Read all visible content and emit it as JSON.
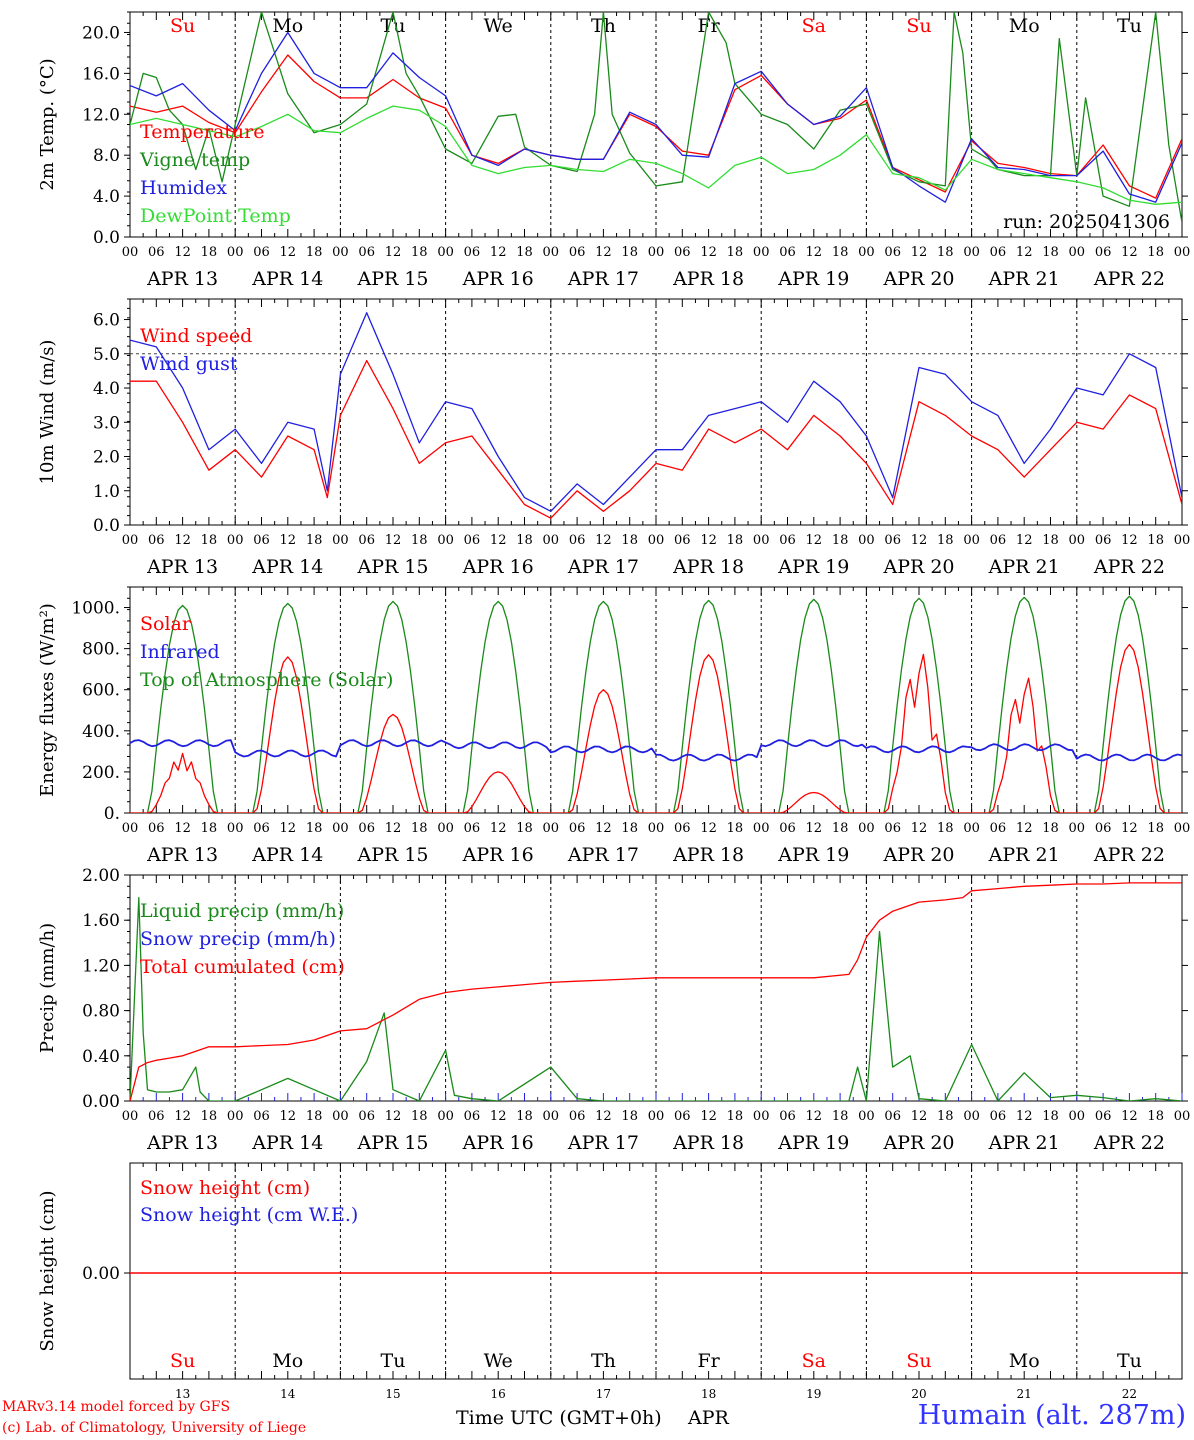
{
  "colors": {
    "red": "#ff0000",
    "green": "#1a8a1a",
    "blue": "#2020e0",
    "lightgreen": "#33dd33",
    "axis": "#000000"
  },
  "days": [
    "Su",
    "Mo",
    "Tu",
    "We",
    "Th",
    "Fr",
    "Sa",
    "Su",
    "Mo",
    "Tu"
  ],
  "day_colors": [
    "red",
    "black",
    "black",
    "black",
    "black",
    "black",
    "red",
    "red",
    "black",
    "black"
  ],
  "dates": [
    "APR 13",
    "APR 14",
    "APR 15",
    "APR 16",
    "APR 17",
    "APR 18",
    "APR 19",
    "APR 20",
    "APR 21",
    "APR 22"
  ],
  "day_numbers": [
    "13",
    "14",
    "15",
    "16",
    "17",
    "18",
    "19",
    "20",
    "21",
    "22"
  ],
  "hour_labels": [
    "00",
    "06",
    "12",
    "18"
  ],
  "final_hour_label": "00",
  "footer": {
    "model": "MARv3.14 model forced by GFS",
    "lab": "(c) Lab. of Climatology, University of Liege",
    "time_axis": "Time UTC (GMT+0h)",
    "month": "APR",
    "station": "Humain (alt. 287m)"
  },
  "chart_data": [
    {
      "type": "line",
      "ylabel": "2m Temp. (°C)",
      "ylim": [
        0,
        22
      ],
      "yticks": [
        "0.0",
        "4.0",
        "8.0",
        "12.0",
        "16.0",
        "20.0"
      ],
      "annotation": "run: 2025041306",
      "series": [
        {
          "name": "Temperature",
          "color": "red",
          "x": [
            0,
            6,
            12,
            18,
            24,
            30,
            36,
            42,
            48,
            54,
            60,
            66,
            72,
            78,
            84,
            90,
            96,
            102,
            108,
            114,
            120,
            126,
            132,
            138,
            144,
            150,
            156,
            162,
            168,
            174,
            180,
            186,
            192,
            198,
            204,
            210,
            216,
            222,
            228,
            234,
            240
          ],
          "y": [
            12.8,
            12.2,
            12.8,
            11.2,
            10.2,
            14.2,
            17.8,
            15.2,
            13.6,
            13.6,
            15.4,
            13.6,
            12.6,
            8.0,
            7.2,
            8.6,
            8.0,
            7.6,
            7.6,
            12.0,
            10.8,
            8.4,
            8.0,
            14.4,
            15.8,
            13.0,
            11.0,
            11.6,
            13.4,
            6.8,
            5.6,
            4.4,
            9.4,
            7.2,
            6.8,
            6.2,
            6.0,
            9.0,
            5.0,
            3.8,
            9.6
          ]
        },
        {
          "name": "Vigne temp",
          "color": "green",
          "x": [
            0,
            3,
            6,
            9,
            12,
            15,
            18,
            21,
            24,
            30,
            36,
            42,
            48,
            54,
            60,
            63,
            66,
            72,
            78,
            84,
            88,
            90,
            96,
            102,
            106,
            108,
            110,
            114,
            120,
            126,
            132,
            136,
            138,
            144,
            150,
            156,
            162,
            168,
            174,
            180,
            186,
            188,
            190,
            192,
            196,
            198,
            204,
            210,
            212,
            216,
            218,
            222,
            228,
            234,
            237,
            240
          ],
          "y": [
            11.0,
            16.0,
            15.6,
            12.4,
            11.0,
            6.6,
            10.6,
            5.4,
            11.0,
            22,
            14.0,
            10.2,
            11.0,
            13.0,
            22,
            16.0,
            13.8,
            8.6,
            7.2,
            11.8,
            12.0,
            8.8,
            7.0,
            6.4,
            12.0,
            22,
            12.0,
            8.2,
            5.0,
            5.4,
            22,
            19.0,
            15.0,
            12.0,
            11.0,
            8.6,
            12.4,
            13.0,
            6.6,
            5.4,
            5.0,
            22,
            18.0,
            8.6,
            7.6,
            6.6,
            6.0,
            6.0,
            19.4,
            6.0,
            13.6,
            4.0,
            3.0,
            22,
            9.0,
            1.4
          ]
        },
        {
          "name": "Humidex",
          "color": "blue",
          "x": [
            0,
            6,
            12,
            18,
            24,
            30,
            36,
            42,
            48,
            54,
            60,
            66,
            72,
            78,
            84,
            90,
            96,
            102,
            108,
            114,
            120,
            126,
            132,
            138,
            144,
            150,
            156,
            162,
            168,
            174,
            180,
            186,
            192,
            198,
            204,
            210,
            216,
            222,
            228,
            234,
            240
          ],
          "y": [
            14.8,
            13.8,
            15.0,
            12.4,
            10.4,
            16.0,
            20.0,
            16.0,
            14.6,
            14.6,
            18.0,
            15.6,
            13.8,
            8.0,
            7.0,
            8.6,
            8.0,
            7.6,
            7.6,
            12.2,
            11.0,
            8.0,
            7.8,
            15.0,
            16.2,
            13.0,
            11.0,
            11.8,
            14.6,
            6.8,
            5.0,
            3.4,
            9.6,
            6.8,
            6.6,
            6.0,
            6.0,
            8.4,
            4.2,
            3.4,
            9.2
          ]
        },
        {
          "name": "DewPoint Temp",
          "color": "lightgreen",
          "x": [
            0,
            6,
            12,
            18,
            24,
            30,
            36,
            42,
            48,
            54,
            60,
            66,
            72,
            78,
            84,
            90,
            96,
            102,
            108,
            114,
            120,
            126,
            132,
            138,
            144,
            150,
            156,
            162,
            168,
            174,
            180,
            186,
            192,
            198,
            204,
            210,
            216,
            222,
            228,
            234,
            240
          ],
          "y": [
            11.0,
            11.6,
            11.0,
            10.4,
            9.8,
            10.8,
            12.0,
            10.4,
            10.2,
            11.6,
            12.8,
            12.4,
            10.8,
            7.0,
            6.2,
            6.8,
            7.0,
            6.6,
            6.4,
            7.6,
            7.2,
            6.2,
            4.8,
            7.0,
            7.8,
            6.2,
            6.6,
            8.0,
            10.0,
            6.2,
            5.8,
            4.6,
            7.6,
            6.6,
            6.2,
            5.8,
            5.4,
            4.8,
            3.6,
            3.2,
            3.4
          ]
        }
      ]
    },
    {
      "type": "line",
      "ylabel": "10m Wind (m/s)",
      "ylim": [
        0,
        6.6
      ],
      "yticks": [
        "0.0",
        "1.0",
        "2.0",
        "3.0",
        "4.0",
        "5.0",
        "6.0"
      ],
      "reference_line": 5.0,
      "series": [
        {
          "name": "Wind speed",
          "color": "red",
          "x": [
            0,
            6,
            12,
            18,
            24,
            30,
            36,
            42,
            45,
            48,
            54,
            60,
            66,
            72,
            78,
            84,
            90,
            96,
            102,
            108,
            114,
            120,
            126,
            132,
            138,
            144,
            150,
            156,
            162,
            168,
            174,
            180,
            186,
            192,
            198,
            204,
            210,
            216,
            222,
            228,
            234,
            240
          ],
          "y": [
            4.2,
            4.2,
            3.0,
            1.6,
            2.2,
            1.4,
            2.6,
            2.2,
            0.8,
            3.2,
            4.8,
            3.4,
            1.8,
            2.4,
            2.6,
            1.6,
            0.6,
            0.2,
            1.0,
            0.4,
            1.0,
            1.8,
            1.6,
            2.8,
            2.4,
            2.8,
            2.2,
            3.2,
            2.6,
            1.8,
            0.6,
            3.6,
            3.2,
            2.6,
            2.2,
            1.4,
            2.2,
            3.0,
            2.8,
            3.8,
            3.4,
            0.6
          ]
        },
        {
          "name": "Wind gust",
          "color": "blue",
          "x": [
            0,
            6,
            12,
            18,
            24,
            30,
            36,
            42,
            45,
            48,
            54,
            60,
            66,
            72,
            78,
            84,
            90,
            96,
            102,
            108,
            114,
            120,
            126,
            132,
            138,
            144,
            150,
            156,
            162,
            168,
            174,
            180,
            186,
            192,
            198,
            204,
            210,
            216,
            222,
            228,
            234,
            240
          ],
          "y": [
            5.4,
            5.2,
            4.0,
            2.2,
            2.8,
            1.8,
            3.0,
            2.8,
            1.0,
            4.4,
            6.2,
            4.4,
            2.4,
            3.6,
            3.4,
            2.0,
            0.8,
            0.4,
            1.2,
            0.6,
            1.4,
            2.2,
            2.2,
            3.2,
            3.4,
            3.6,
            3.0,
            4.2,
            3.6,
            2.6,
            0.8,
            4.6,
            4.4,
            3.6,
            3.2,
            1.8,
            2.8,
            4.0,
            3.8,
            5.0,
            4.6,
            0.8
          ]
        }
      ]
    },
    {
      "type": "line",
      "ylabel": "Energy fluxes (W/m²)",
      "ylim": [
        0,
        1100
      ],
      "yticks": [
        "0.",
        "200.",
        "400.",
        "600.",
        "800.",
        "1000."
      ],
      "series": [
        {
          "name": "Solar",
          "color": "red"
        },
        {
          "name": "Infrared",
          "color": "blue"
        },
        {
          "name": "Top of Atmosphere (Solar)",
          "color": "green"
        }
      ],
      "solar_peaks": [
        290,
        760,
        480,
        200,
        600,
        770,
        100,
        800,
        680,
        820
      ],
      "toa_peaks": [
        1010,
        1020,
        1030,
        1030,
        1030,
        1035,
        1040,
        1045,
        1050,
        1055
      ],
      "infrared_level": [
        340,
        290,
        340,
        330,
        310,
        270,
        340,
        310,
        320,
        270
      ]
    },
    {
      "type": "line",
      "ylabel": "Precip (mm/h)",
      "ylim": [
        0,
        2.0
      ],
      "yticks": [
        "0.00",
        "0.40",
        "0.80",
        "1.20",
        "1.60",
        "2.00"
      ],
      "series": [
        {
          "name": "Liquid precip (mm/h)",
          "color": "green",
          "x": [
            0,
            2,
            3,
            4,
            6,
            9,
            12,
            15,
            16,
            18,
            24,
            36,
            42,
            48,
            54,
            58,
            60,
            66,
            72,
            74,
            78,
            84,
            96,
            102,
            108,
            114,
            120,
            132,
            144,
            156,
            162,
            168,
            164,
            166,
            171,
            174,
            178,
            180,
            186,
            192,
            198,
            204,
            210,
            216,
            222,
            228,
            234,
            240
          ],
          "y": [
            0.0,
            1.8,
            0.6,
            0.1,
            0.08,
            0.08,
            0.1,
            0.3,
            0.08,
            0.0,
            0.0,
            0.2,
            0.1,
            0.0,
            0.35,
            0.78,
            0.1,
            0.0,
            0.45,
            0.05,
            0.02,
            0.0,
            0.3,
            0.02,
            0.0,
            0.0,
            0.0,
            0.0,
            0.0,
            0.0,
            0.0,
            0.0,
            0.0,
            0.3,
            1.5,
            0.3,
            0.4,
            0.02,
            0.0,
            0.5,
            0.0,
            0.25,
            0.03,
            0.05,
            0.03,
            0.0,
            0.02,
            0.0
          ]
        },
        {
          "name": "Snow precip (mm/h)",
          "color": "blue"
        },
        {
          "name": "Total cumulated (cm)",
          "color": "red",
          "x": [
            0,
            2,
            4,
            6,
            9,
            12,
            15,
            18,
            24,
            30,
            36,
            42,
            48,
            54,
            58,
            60,
            66,
            72,
            78,
            84,
            90,
            96,
            102,
            108,
            114,
            120,
            132,
            144,
            156,
            164,
            166,
            168,
            171,
            174,
            180,
            186,
            190,
            192,
            198,
            204,
            210,
            216,
            222,
            228,
            234,
            240
          ],
          "y": [
            0.0,
            0.3,
            0.34,
            0.36,
            0.38,
            0.4,
            0.44,
            0.48,
            0.48,
            0.49,
            0.5,
            0.54,
            0.62,
            0.64,
            0.72,
            0.76,
            0.9,
            0.96,
            0.99,
            1.01,
            1.03,
            1.05,
            1.06,
            1.07,
            1.08,
            1.09,
            1.09,
            1.09,
            1.09,
            1.12,
            1.25,
            1.45,
            1.6,
            1.68,
            1.76,
            1.78,
            1.8,
            1.86,
            1.88,
            1.9,
            1.91,
            1.92,
            1.92,
            1.93,
            1.93,
            1.93
          ]
        }
      ]
    },
    {
      "type": "line",
      "ylabel": "Snow height (cm)",
      "yticks": [
        "0.00"
      ],
      "series": [
        {
          "name": "Snow height (cm)",
          "color": "red"
        },
        {
          "name": "Snow height (cm W.E.)",
          "color": "blue"
        }
      ]
    }
  ]
}
